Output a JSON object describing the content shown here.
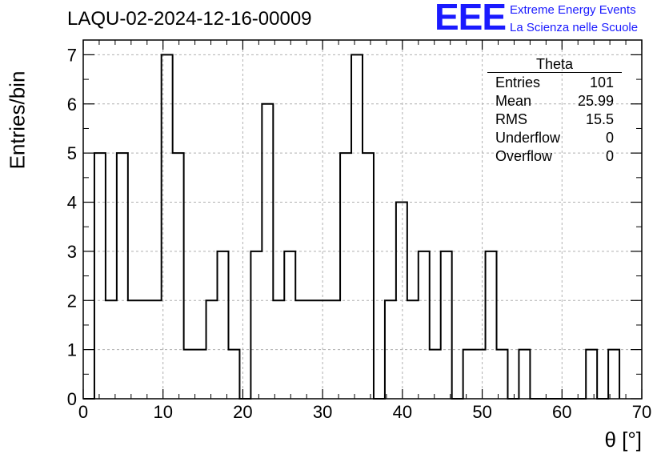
{
  "header": {
    "run_title": "LAQU-02-2024-12-16-00009",
    "logo_text": "EEE",
    "logo_line1": "Extreme Energy Events",
    "logo_line2": "La Scienza nelle Scuole"
  },
  "stats_box": {
    "title": "Theta",
    "rows": [
      {
        "label": "Entries",
        "value": "101"
      },
      {
        "label": "Mean",
        "value": "25.99"
      },
      {
        "label": "RMS",
        "value": "15.5"
      },
      {
        "label": "Underflow",
        "value": "0"
      },
      {
        "label": "Overflow",
        "value": "0"
      }
    ]
  },
  "colors": {
    "logo": "#1a1aff",
    "line": "#000000",
    "grid": "#b0b0b0"
  },
  "chart_data": {
    "type": "bar",
    "histogram": true,
    "title": "LAQU-02-2024-12-16-00009",
    "xlabel": "θ [°]",
    "ylabel": "Entries/bin",
    "xlim": [
      0,
      70
    ],
    "ylim": [
      0,
      7.3
    ],
    "xticks": [
      0,
      10,
      20,
      30,
      40,
      50,
      60,
      70
    ],
    "yticks": [
      0,
      1,
      2,
      3,
      4,
      5,
      6,
      7
    ],
    "grid": true,
    "bin_width": 1.4,
    "x": [
      0.7,
      2.1,
      3.5,
      4.9,
      6.3,
      7.7,
      9.1,
      10.5,
      11.9,
      13.3,
      14.7,
      16.1,
      17.5,
      18.9,
      20.3,
      21.7,
      23.1,
      24.5,
      25.9,
      27.3,
      28.7,
      30.1,
      31.5,
      32.9,
      34.3,
      35.7,
      37.1,
      38.5,
      39.9,
      41.3,
      42.7,
      44.1,
      45.5,
      46.9,
      48.3,
      49.7,
      51.1,
      52.5,
      53.9,
      55.3,
      56.7,
      58.1,
      59.5,
      60.9,
      62.3,
      63.7,
      65.1,
      66.5
    ],
    "values": [
      0,
      5,
      2,
      5,
      2,
      2,
      2,
      7,
      5,
      1,
      1,
      2,
      3,
      1,
      0,
      3,
      6,
      2,
      3,
      2,
      2,
      2,
      2,
      5,
      7,
      5,
      0,
      2,
      4,
      2,
      3,
      1,
      3,
      0,
      1,
      1,
      3,
      1,
      0,
      1,
      0,
      0,
      0,
      0,
      0,
      1,
      0,
      1
    ]
  }
}
